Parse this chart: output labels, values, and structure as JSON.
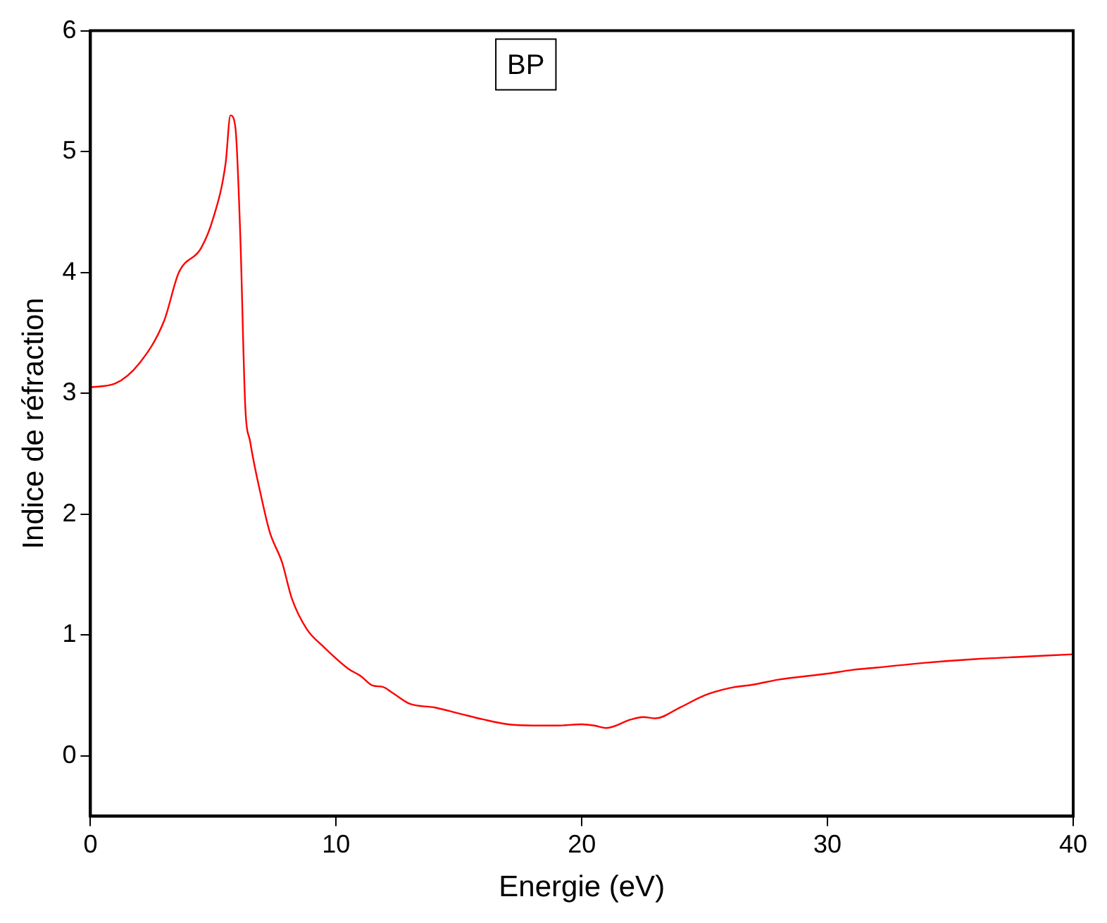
{
  "chart_data": {
    "type": "line",
    "xlabel": "Energie (eV)",
    "ylabel": "Indice de réfraction",
    "annotations": [
      "BP"
    ],
    "x": [
      0,
      1,
      2,
      3,
      3.6,
      4.5,
      5,
      5.5,
      5.7,
      5.9,
      6.1,
      6.3,
      6.5,
      7,
      7.3,
      7.8,
      8.2,
      8.8,
      9.5,
      10.5,
      11,
      11.5,
      11.9,
      12.3,
      13,
      14,
      15,
      16,
      17,
      18,
      19,
      20,
      20.5,
      21,
      22,
      22.5,
      23,
      24,
      25,
      26,
      27,
      28,
      30,
      31,
      32,
      34,
      36,
      38,
      40
    ],
    "series": [
      {
        "color": "#ff0000",
        "values": [
          3.05,
          3.08,
          3.25,
          3.6,
          4.0,
          4.2,
          4.45,
          4.9,
          5.3,
          5.2,
          4.3,
          2.9,
          2.6,
          2.1,
          1.85,
          1.6,
          1.3,
          1.05,
          0.9,
          0.72,
          0.66,
          0.58,
          0.57,
          0.52,
          0.43,
          0.4,
          0.35,
          0.3,
          0.26,
          0.25,
          0.25,
          0.26,
          0.25,
          0.23,
          0.3,
          0.32,
          0.31,
          0.4,
          0.5,
          0.56,
          0.59,
          0.63,
          0.68,
          0.71,
          0.73,
          0.77,
          0.8,
          0.82,
          0.84
        ]
      }
    ],
    "xlim": [
      0,
      40
    ],
    "xticks": [
      0,
      10,
      20,
      30,
      40
    ],
    "ylim": [
      -0.5,
      6
    ],
    "yticks": [
      0,
      1,
      2,
      3,
      4,
      5,
      6
    ],
    "grid": false,
    "legend": false,
    "marker": "none",
    "line_style": "solid"
  }
}
